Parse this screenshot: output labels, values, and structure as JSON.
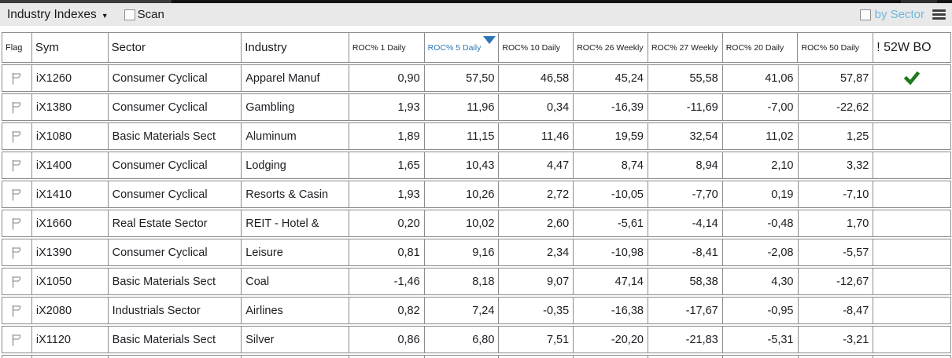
{
  "toolbar": {
    "title": "Industry Indexes",
    "dropdown_icon": "▼",
    "scan_label": "Scan",
    "scan_checked": false,
    "by_sector_label": "by Sector",
    "by_sector_checked": false
  },
  "colors": {
    "sort_accent_blue": "#2e75b6",
    "by_sector_blue": "#6cb9e3",
    "breakout_green": "#1e7a1e",
    "grid_gray": "#8c8c8c",
    "flag_gray": "#9a9a9a",
    "toolbar_bg": "#e9e9e9"
  },
  "table": {
    "columns": [
      {
        "key": "flag",
        "label": "Flag"
      },
      {
        "key": "sym",
        "label": "Sym"
      },
      {
        "key": "sector",
        "label": "Sector"
      },
      {
        "key": "industry",
        "label": "Industry"
      },
      {
        "key": "roc1",
        "label": "ROC% 1 Daily"
      },
      {
        "key": "roc5",
        "label": "ROC% 5 Daily",
        "sorted": "desc"
      },
      {
        "key": "roc10",
        "label": "ROC% 10 Daily"
      },
      {
        "key": "roc26w",
        "label": "ROC% 26 Weekly"
      },
      {
        "key": "roc27w",
        "label": "ROC% 27 Weekly"
      },
      {
        "key": "roc20",
        "label": "ROC% 20 Daily"
      },
      {
        "key": "roc50",
        "label": "ROC% 50 Daily"
      },
      {
        "key": "bo",
        "label": "! 52W BO"
      }
    ],
    "rows": [
      {
        "sym": "iX1260",
        "sector": "Consumer Cyclical",
        "industry": "Apparel Manuf",
        "values": [
          "0,90",
          "57,50",
          "46,58",
          "45,24",
          "55,58",
          "41,06",
          "57,87"
        ],
        "breakout": true
      },
      {
        "sym": "iX1380",
        "sector": "Consumer Cyclical",
        "industry": "Gambling",
        "values": [
          "1,93",
          "11,96",
          "0,34",
          "-16,39",
          "-11,69",
          "-7,00",
          "-22,62"
        ],
        "breakout": false
      },
      {
        "sym": "iX1080",
        "sector": "Basic Materials Sect",
        "industry": "Aluminum",
        "values": [
          "1,89",
          "11,15",
          "11,46",
          "19,59",
          "32,54",
          "11,02",
          "1,25"
        ],
        "breakout": false
      },
      {
        "sym": "iX1400",
        "sector": "Consumer Cyclical",
        "industry": "Lodging",
        "values": [
          "1,65",
          "10,43",
          "4,47",
          "8,74",
          "8,94",
          "2,10",
          "3,32"
        ],
        "breakout": false
      },
      {
        "sym": "iX1410",
        "sector": "Consumer Cyclical",
        "industry": "Resorts & Casin",
        "values": [
          "1,93",
          "10,26",
          "2,72",
          "-10,05",
          "-7,70",
          "0,19",
          "-7,10"
        ],
        "breakout": false
      },
      {
        "sym": "iX1660",
        "sector": "Real Estate Sector",
        "industry": "REIT - Hotel &",
        "values": [
          "0,20",
          "10,02",
          "2,60",
          "-5,61",
          "-4,14",
          "-0,48",
          "1,70"
        ],
        "breakout": false
      },
      {
        "sym": "iX1390",
        "sector": "Consumer Cyclical",
        "industry": "Leisure",
        "values": [
          "0,81",
          "9,16",
          "2,34",
          "-10,98",
          "-8,41",
          "-2,08",
          "-5,57"
        ],
        "breakout": false
      },
      {
        "sym": "iX1050",
        "sector": "Basic Materials Sect",
        "industry": "Coal",
        "values": [
          "-1,46",
          "8,18",
          "9,07",
          "47,14",
          "58,38",
          "4,30",
          "-12,67"
        ],
        "breakout": false
      },
      {
        "sym": "iX2080",
        "sector": "Industrials Sector",
        "industry": "Airlines",
        "values": [
          "0,82",
          "7,24",
          "-0,35",
          "-16,38",
          "-17,67",
          "-0,95",
          "-8,47"
        ],
        "breakout": false
      },
      {
        "sym": "iX1120",
        "sector": "Basic Materials Sect",
        "industry": "Silver",
        "values": [
          "0,86",
          "6,80",
          "7,51",
          "-20,20",
          "-21,83",
          "-5,31",
          "-3,21"
        ],
        "breakout": false
      }
    ]
  }
}
